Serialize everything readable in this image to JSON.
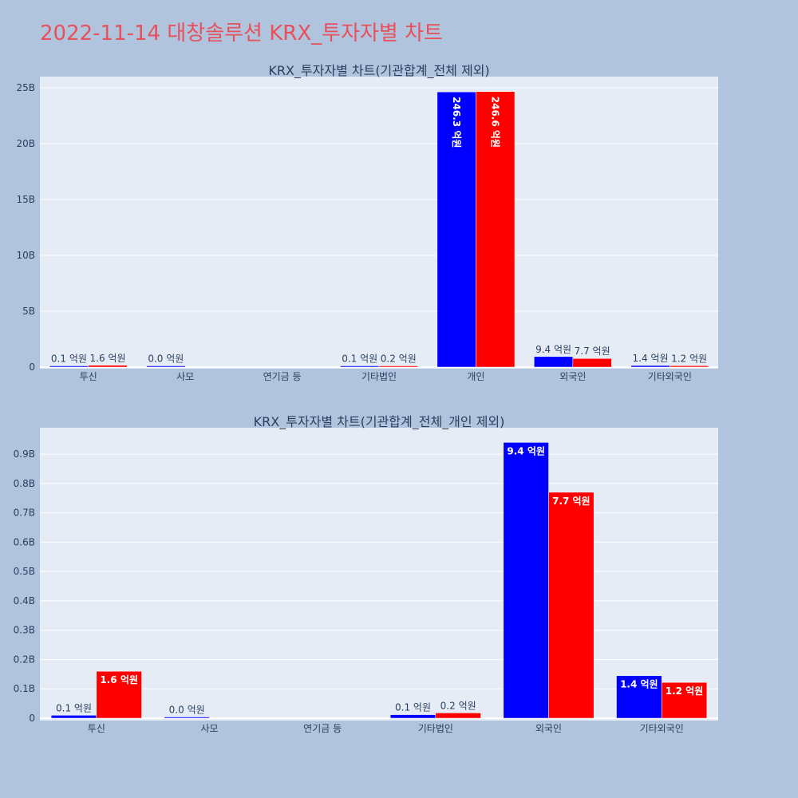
{
  "page_title": "2022-11-14 대창솔루션 KRX_투자자별 차트",
  "chart_data": [
    {
      "type": "bar",
      "title": "KRX_투자자별 차트(기관합계_전체 제외)",
      "categories": [
        "투신",
        "사모",
        "연기금 등",
        "기타법인",
        "개인",
        "외국인",
        "기타외국인"
      ],
      "ylim": [
        0,
        26000000000
      ],
      "yticks": [
        0,
        5000000000,
        10000000000,
        15000000000,
        20000000000,
        25000000000
      ],
      "ytick_labels": [
        "0",
        "5B",
        "10B",
        "15B",
        "20B",
        "25B"
      ],
      "grid": true,
      "legend": "none",
      "series": [
        {
          "color": "#0000ff",
          "values": [
            10000000,
            2000000,
            0,
            10000000,
            24630000000,
            940000000,
            140000000
          ],
          "labels": [
            "0.1 억원",
            "0.0 억원",
            "",
            "0.1 억원",
            "246.3 억원",
            "9.4 억원",
            "1.4 억원"
          ]
        },
        {
          "color": "#ff0000",
          "values": [
            160000000,
            0,
            0,
            20000000,
            24660000000,
            770000000,
            120000000
          ],
          "labels": [
            "1.6 억원",
            "",
            "",
            "0.2 억원",
            "246.6 억원",
            "7.7 억원",
            "1.2 억원"
          ]
        }
      ]
    },
    {
      "type": "bar",
      "title": "KRX_투자자별 차트(기관합계_전체_개인 제외)",
      "categories": [
        "투신",
        "사모",
        "연기금 등",
        "기타법인",
        "외국인",
        "기타외국인"
      ],
      "ylim": [
        0,
        990000000
      ],
      "yticks": [
        0,
        100000000,
        200000000,
        300000000,
        400000000,
        500000000,
        600000000,
        700000000,
        800000000,
        900000000
      ],
      "ytick_labels": [
        "0",
        "0.1B",
        "0.2B",
        "0.3B",
        "0.4B",
        "0.5B",
        "0.6B",
        "0.7B",
        "0.8B",
        "0.9B"
      ],
      "grid": true,
      "legend": "none",
      "series": [
        {
          "color": "#0000ff",
          "values": [
            10000000,
            2000000,
            0,
            12000000,
            940000000,
            145000000
          ],
          "labels": [
            "0.1 억원",
            "0.0 억원",
            "",
            "0.1 억원",
            "9.4 억원",
            "1.4 억원"
          ]
        },
        {
          "color": "#ff0000",
          "values": [
            160000000,
            0,
            0,
            18000000,
            770000000,
            122000000
          ],
          "labels": [
            "1.6 억원",
            "",
            "",
            "0.2 억원",
            "7.7 억원",
            "1.2 억원"
          ]
        }
      ]
    }
  ]
}
